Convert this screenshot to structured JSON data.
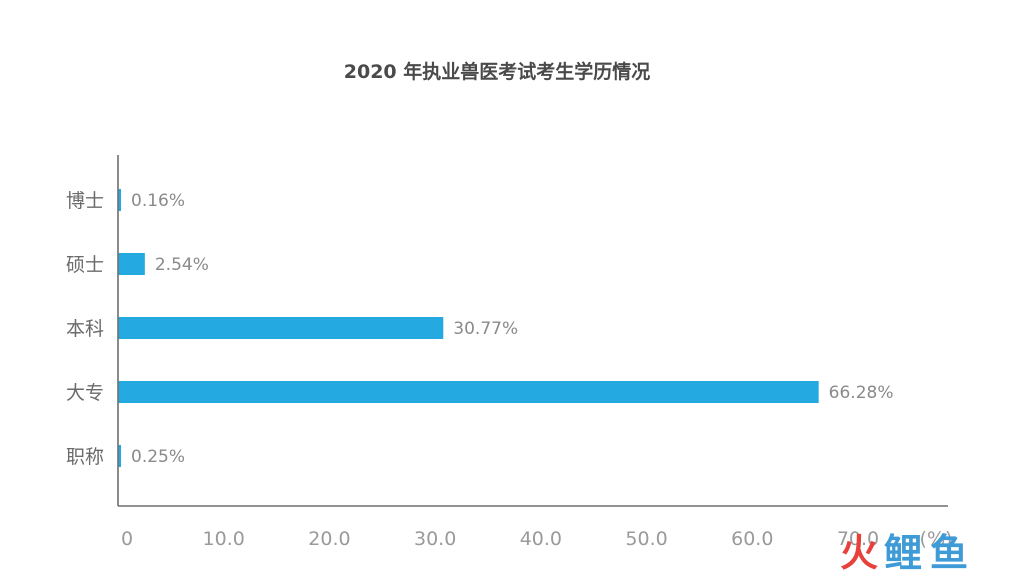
{
  "chart_data": {
    "type": "bar",
    "orientation": "horizontal",
    "title": "2020 年执业兽医考试考生学历情况",
    "categories": [
      "博士",
      "硕士",
      "本科",
      "大专",
      "职称"
    ],
    "values": [
      0.16,
      2.54,
      30.77,
      66.28,
      0.25
    ],
    "value_labels": [
      "0.16%",
      "2.54%",
      "30.77%",
      "66.28%",
      "0.25%"
    ],
    "xlim": [
      0,
      70
    ],
    "xticks": [
      "0",
      "10.0",
      "20.0",
      "30.0",
      "40.0",
      "50.0",
      "60.0",
      "70.0"
    ],
    "unit_label": "(%)",
    "grid": false,
    "bar_color": "#24a9e1"
  },
  "watermark": {
    "char1": "火",
    "char2": "鲤",
    "char3": "鱼",
    "color1": "#e8413c",
    "color2": "#3e9bd8"
  }
}
